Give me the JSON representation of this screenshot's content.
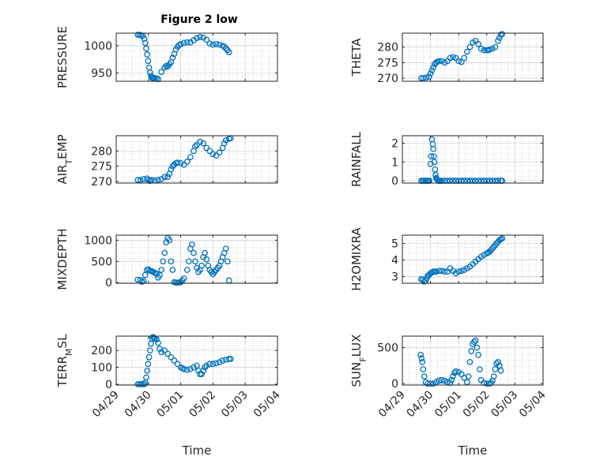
{
  "figure": {
    "title": "Figure 2 low",
    "marker_color": "#0072BD"
  },
  "chart_data": [
    {
      "type": "scatter",
      "title": "Figure 2 low",
      "xlabel": "",
      "ylabel": "PRESSURE",
      "xlim": [
        0,
        5
      ],
      "ylim": [
        935,
        1023
      ],
      "yticks": [
        950,
        1000
      ],
      "grid": true,
      "x": [
        0.67,
        0.72,
        0.77,
        0.82,
        0.87,
        0.9,
        0.93,
        0.96,
        0.99,
        1.02,
        1.05,
        1.08,
        1.1,
        1.13,
        1.16,
        1.2,
        1.25,
        1.3,
        1.4,
        1.5,
        1.55,
        1.6,
        1.65,
        1.7,
        1.75,
        1.8,
        1.85,
        1.9,
        1.95,
        2.0,
        2.1,
        2.2,
        2.3,
        2.4,
        2.5,
        2.6,
        2.7,
        2.8,
        2.9,
        3.0,
        3.1,
        3.2,
        3.3,
        3.35,
        3.4,
        3.45,
        3.5
      ],
      "y": [
        1020,
        1020,
        1019,
        1018,
        1013,
        1005,
        995,
        984,
        972,
        960,
        951,
        945,
        942,
        941,
        940,
        941,
        940,
        939,
        952,
        960,
        963,
        962,
        966,
        970,
        978,
        985,
        993,
        998,
        1001,
        1003,
        1005,
        1006,
        1006,
        1010,
        1014,
        1016,
        1015,
        1011,
        1004,
        1002,
        1003,
        1002,
        1000,
        998,
        995,
        992,
        988
      ]
    },
    {
      "type": "scatter",
      "xlabel": "",
      "ylabel": "THETA",
      "xlim": [
        0,
        5
      ],
      "ylim": [
        269,
        284.5
      ],
      "yticks": [
        270,
        275,
        280
      ],
      "grid": true,
      "x": [
        0.67,
        0.75,
        0.85,
        0.95,
        1.0,
        1.05,
        1.1,
        1.15,
        1.2,
        1.25,
        1.3,
        1.4,
        1.5,
        1.6,
        1.7,
        1.8,
        1.9,
        2.0,
        2.1,
        2.2,
        2.3,
        2.4,
        2.5,
        2.6,
        2.7,
        2.8,
        2.9,
        3.0,
        3.05,
        3.1,
        3.2,
        3.3,
        3.4,
        3.45,
        3.5,
        3.55
      ],
      "y": [
        270,
        270,
        270.2,
        270.5,
        271.5,
        272.5,
        273.5,
        274.5,
        275,
        275.3,
        275.5,
        275.5,
        275,
        275.5,
        276.5,
        276.8,
        276.5,
        275.5,
        275.2,
        276.5,
        278.5,
        280,
        281.5,
        282,
        281,
        279.5,
        279,
        279,
        279,
        279.2,
        279.5,
        280,
        282,
        283,
        284,
        284.2
      ]
    },
    {
      "type": "scatter",
      "xlabel": "",
      "ylabel": "AIR_TEMP",
      "xlim": [
        0,
        5
      ],
      "ylim": [
        269.5,
        285
      ],
      "yticks": [
        270,
        275,
        280
      ],
      "grid": true,
      "x": [
        0.67,
        0.75,
        0.85,
        0.95,
        1.0,
        1.05,
        1.1,
        1.2,
        1.3,
        1.4,
        1.5,
        1.6,
        1.65,
        1.7,
        1.75,
        1.8,
        1.85,
        1.9,
        2.0,
        2.1,
        2.2,
        2.3,
        2.4,
        2.45,
        2.5,
        2.6,
        2.7,
        2.8,
        2.9,
        3.0,
        3.1,
        3.2,
        3.3,
        3.35,
        3.4,
        3.5,
        3.55
      ],
      "y": [
        270.5,
        270.5,
        270.8,
        271,
        270.5,
        270.2,
        270.5,
        270.3,
        270.5,
        270.8,
        271.5,
        271.5,
        272.5,
        274,
        275,
        275.5,
        276,
        276.2,
        276,
        275.5,
        276.5,
        278,
        280,
        281.5,
        282,
        283,
        282.5,
        281,
        280,
        279,
        278.5,
        279.5,
        281,
        282.5,
        283.5,
        284,
        284.2
      ]
    },
    {
      "type": "scatter",
      "xlabel": "",
      "ylabel": "RAINFALL",
      "xlim": [
        0,
        5
      ],
      "ylim": [
        -0.12,
        2.4
      ],
      "yticks": [
        0,
        1,
        2
      ],
      "grid": true,
      "x": [
        0.67,
        0.72,
        0.77,
        0.82,
        0.87,
        0.92,
        0.96,
        1.0,
        1.02,
        1.05,
        1.08,
        1.1,
        1.12,
        1.14,
        1.16,
        1.18,
        1.2,
        1.22,
        1.25,
        1.28,
        1.3,
        1.32,
        1.35,
        1.4,
        1.5,
        1.6,
        1.7,
        1.8,
        1.9,
        2.0,
        2.1,
        2.2,
        2.3,
        2.4,
        2.5,
        2.6,
        2.7,
        2.8,
        2.9,
        3.0,
        3.1,
        3.2,
        3.3,
        3.4,
        3.5,
        3.55
      ],
      "y": [
        0,
        0,
        0,
        0,
        0,
        0,
        0,
        0.9,
        1.3,
        2.2,
        1.95,
        1.7,
        1.3,
        1.0,
        0.6,
        0.3,
        0.15,
        0.1,
        0.05,
        0,
        0,
        0,
        0,
        0,
        0,
        0,
        0,
        0,
        0,
        0,
        0,
        0,
        0,
        0,
        0,
        0,
        0,
        0,
        0,
        0,
        0,
        0,
        0,
        0,
        0,
        0
      ]
    },
    {
      "type": "scatter",
      "xlabel": "",
      "ylabel": "MIXDEPTH",
      "xlim": [
        0,
        5
      ],
      "ylim": [
        -15,
        1120
      ],
      "yticks": [
        0,
        500,
        1000
      ],
      "grid": true,
      "x": [
        0.67,
        0.75,
        0.8,
        0.85,
        0.9,
        0.95,
        1.0,
        1.05,
        1.1,
        1.15,
        1.2,
        1.25,
        1.3,
        1.35,
        1.4,
        1.45,
        1.5,
        1.55,
        1.6,
        1.65,
        1.7,
        1.75,
        1.8,
        1.85,
        1.9,
        1.95,
        2.0,
        2.05,
        2.1,
        2.2,
        2.25,
        2.3,
        2.35,
        2.4,
        2.45,
        2.5,
        2.55,
        2.6,
        2.65,
        2.7,
        2.75,
        2.8,
        2.85,
        2.9,
        2.95,
        3.0,
        3.05,
        3.1,
        3.15,
        3.2,
        3.25,
        3.3,
        3.35,
        3.4,
        3.45,
        3.5
      ],
      "y": [
        70,
        60,
        20,
        40,
        180,
        300,
        310,
        280,
        270,
        250,
        230,
        210,
        120,
        170,
        300,
        500,
        700,
        950,
        1050,
        1000,
        500,
        300,
        10,
        0,
        0,
        5,
        10,
        50,
        100,
        300,
        500,
        800,
        900,
        700,
        500,
        350,
        250,
        300,
        400,
        600,
        700,
        550,
        400,
        300,
        250,
        200,
        250,
        300,
        350,
        400,
        500,
        600,
        700,
        800,
        500,
        50
      ]
    },
    {
      "type": "scatter",
      "xlabel": "",
      "ylabel": "H2OMIXRA",
      "xlim": [
        0,
        5
      ],
      "ylim": [
        2.6,
        5.5
      ],
      "yticks": [
        3,
        4,
        5
      ],
      "grid": true,
      "x": [
        0.67,
        0.72,
        0.77,
        0.82,
        0.87,
        0.9,
        0.95,
        1.0,
        1.05,
        1.1,
        1.15,
        1.2,
        1.3,
        1.4,
        1.5,
        1.6,
        1.7,
        1.8,
        1.9,
        2.0,
        2.1,
        2.2,
        2.3,
        2.4,
        2.5,
        2.6,
        2.7,
        2.8,
        2.9,
        3.0,
        3.05,
        3.1,
        3.15,
        3.2,
        3.25,
        3.3,
        3.35,
        3.4,
        3.45,
        3.5,
        3.55
      ],
      "y": [
        2.85,
        2.8,
        2.7,
        2.75,
        2.9,
        3.05,
        3.1,
        3.2,
        3.25,
        3.3,
        3.3,
        3.3,
        3.35,
        3.35,
        3.3,
        3.3,
        3.5,
        3.35,
        3.2,
        3.3,
        3.35,
        3.4,
        3.5,
        3.6,
        3.75,
        3.9,
        4.05,
        4.2,
        4.3,
        4.4,
        4.45,
        4.5,
        4.6,
        4.7,
        4.8,
        4.9,
        5.0,
        5.1,
        5.2,
        5.25,
        5.3
      ]
    },
    {
      "type": "scatter",
      "xlabel": "Time",
      "ylabel": "TERR_MSL",
      "xlim": [
        0,
        5
      ],
      "ylim": [
        -5,
        285
      ],
      "yticks": [
        0,
        100,
        200
      ],
      "grid": true,
      "xticks": [
        0,
        1,
        2,
        3,
        4,
        5
      ],
      "xticklabels": [
        "04/29",
        "04/30",
        "05/01",
        "05/02",
        "05/03",
        "05/04"
      ],
      "x": [
        0.67,
        0.72,
        0.77,
        0.82,
        0.87,
        0.9,
        0.93,
        0.96,
        0.99,
        1.02,
        1.05,
        1.08,
        1.11,
        1.14,
        1.17,
        1.2,
        1.25,
        1.3,
        1.35,
        1.4,
        1.5,
        1.6,
        1.7,
        1.8,
        1.9,
        2.0,
        2.05,
        2.1,
        2.2,
        2.3,
        2.4,
        2.5,
        2.55,
        2.6,
        2.65,
        2.7,
        2.75,
        2.8,
        2.9,
        3.0,
        3.1,
        3.2,
        3.3,
        3.4,
        3.5,
        3.55
      ],
      "y": [
        0,
        0,
        0,
        0,
        0,
        10,
        40,
        80,
        120,
        160,
        200,
        240,
        270,
        280,
        275,
        270,
        265,
        245,
        210,
        190,
        200,
        180,
        160,
        140,
        120,
        100,
        95,
        90,
        85,
        90,
        100,
        110,
        80,
        60,
        60,
        80,
        100,
        110,
        120,
        120,
        125,
        130,
        140,
        145,
        150,
        150
      ]
    },
    {
      "type": "scatter",
      "xlabel": "Time",
      "ylabel": "SUN_FLUX",
      "xlim": [
        0,
        5
      ],
      "ylim": [
        -20,
        660
      ],
      "yticks": [
        0,
        500
      ],
      "grid": true,
      "xticks": [
        0,
        1,
        2,
        3,
        4,
        5
      ],
      "xticklabels": [
        "04/29",
        "04/30",
        "05/01",
        "05/02",
        "05/03",
        "05/04"
      ],
      "x": [
        0.65,
        0.68,
        0.71,
        0.74,
        0.78,
        0.83,
        0.9,
        1.0,
        1.1,
        1.2,
        1.3,
        1.4,
        1.5,
        1.6,
        1.7,
        1.75,
        1.8,
        1.85,
        1.9,
        2.0,
        2.1,
        2.2,
        2.3,
        2.35,
        2.4,
        2.45,
        2.5,
        2.55,
        2.6,
        2.65,
        2.7,
        2.75,
        2.8,
        2.9,
        3.0,
        3.1,
        3.15,
        3.2,
        3.25,
        3.3,
        3.35,
        3.4,
        3.45,
        3.5
      ],
      "y": [
        400,
        350,
        300,
        200,
        100,
        20,
        0,
        0,
        0,
        20,
        40,
        50,
        40,
        20,
        10,
        50,
        100,
        150,
        170,
        160,
        130,
        80,
        20,
        100,
        300,
        450,
        550,
        580,
        600,
        500,
        400,
        200,
        50,
        10,
        0,
        0,
        10,
        40,
        100,
        200,
        280,
        300,
        250,
        180
      ]
    }
  ]
}
